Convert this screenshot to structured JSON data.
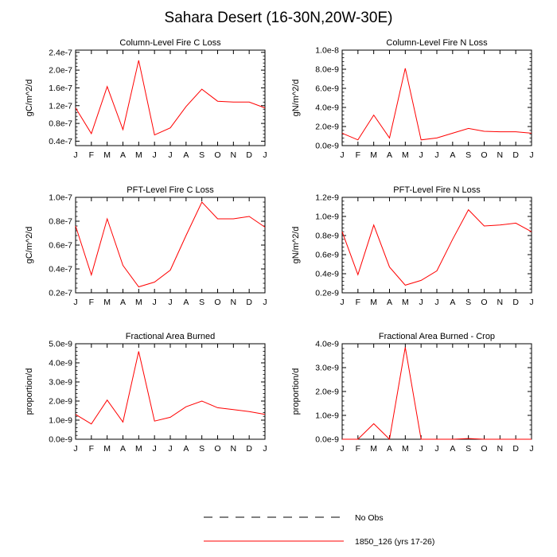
{
  "figure": {
    "title": "Sahara Desert (16-30N,20W-30E)",
    "legend": [
      {
        "label": "No Obs",
        "style": "dashed",
        "color": "#000000"
      },
      {
        "label": "1850_126 (yrs 17-26)",
        "style": "solid",
        "color": "#ff0000"
      }
    ]
  },
  "chart_data": [
    {
      "type": "line",
      "title": "Column-Level Fire C Loss",
      "ylabel": "gC/m^2/d",
      "categories": [
        "J",
        "F",
        "M",
        "A",
        "M",
        "J",
        "J",
        "A",
        "S",
        "O",
        "N",
        "D",
        "J"
      ],
      "ylim": [
        3e-08,
        2.45e-07
      ],
      "yticks": [
        4e-08,
        8e-08,
        1.2e-07,
        1.6e-07,
        2e-07,
        2.4e-07
      ],
      "ytick_labels": [
        "0.4e-7",
        "0.8e-7",
        "1.2e-7",
        "1.6e-7",
        "2.0e-7",
        "2.4e-7"
      ],
      "series": [
        {
          "name": "1850_126 (yrs 17-26)",
          "color": "#ff0000",
          "values": [
            1.15e-07,
            5.7e-08,
            1.63e-07,
            6.6e-08,
            2.22e-07,
            5.4e-08,
            7e-08,
            1.18e-07,
            1.57e-07,
            1.3e-07,
            1.28e-07,
            1.28e-07,
            1.15e-07
          ]
        }
      ]
    },
    {
      "type": "line",
      "title": "Column-Level Fire N Loss",
      "ylabel": "gN/m^2/d",
      "categories": [
        "J",
        "F",
        "M",
        "A",
        "M",
        "J",
        "J",
        "A",
        "S",
        "O",
        "N",
        "D",
        "J"
      ],
      "ylim": [
        0,
        1e-08
      ],
      "yticks": [
        0,
        2e-09,
        4e-09,
        6e-09,
        8e-09,
        1e-08
      ],
      "ytick_labels": [
        "0.0e-9",
        "2.0e-9",
        "4.0e-9",
        "6.0e-9",
        "8.0e-9",
        "1.0e-8"
      ],
      "series": [
        {
          "name": "1850_126 (yrs 17-26)",
          "color": "#ff0000",
          "values": [
            1.3e-09,
            6e-10,
            3.2e-09,
            8e-10,
            8.1e-09,
            6e-10,
            8e-10,
            1.3e-09,
            1.8e-09,
            1.5e-09,
            1.45e-09,
            1.45e-09,
            1.3e-09
          ]
        }
      ]
    },
    {
      "type": "line",
      "title": "PFT-Level Fire C Loss",
      "ylabel": "gC/m^2/d",
      "categories": [
        "J",
        "F",
        "M",
        "A",
        "M",
        "J",
        "J",
        "A",
        "S",
        "O",
        "N",
        "D",
        "J"
      ],
      "ylim": [
        2e-08,
        1e-07
      ],
      "yticks": [
        2e-08,
        4e-08,
        6e-08,
        8e-08,
        1e-07
      ],
      "ytick_labels": [
        "0.2e-7",
        "0.4e-7",
        "0.6e-7",
        "0.8e-7",
        "1.0e-7"
      ],
      "series": [
        {
          "name": "1850_126 (yrs 17-26)",
          "color": "#ff0000",
          "values": [
            7.6e-08,
            3.5e-08,
            8.2e-08,
            4.3e-08,
            2.5e-08,
            2.9e-08,
            3.9e-08,
            6.8e-08,
            9.6e-08,
            8.2e-08,
            8.2e-08,
            8.4e-08,
            7.5e-08
          ]
        }
      ]
    },
    {
      "type": "line",
      "title": "PFT-Level Fire N Loss",
      "ylabel": "gN/m^2/d",
      "categories": [
        "J",
        "F",
        "M",
        "A",
        "M",
        "J",
        "J",
        "A",
        "S",
        "O",
        "N",
        "D",
        "J"
      ],
      "ylim": [
        2e-10,
        1.2e-09
      ],
      "yticks": [
        2e-10,
        4e-10,
        6e-10,
        8e-10,
        1e-09,
        1.2e-09
      ],
      "ytick_labels": [
        "0.2e-9",
        "0.4e-9",
        "0.6e-9",
        "0.8e-9",
        "1.0e-9",
        "1.2e-9"
      ],
      "series": [
        {
          "name": "1850_126 (yrs 17-26)",
          "color": "#ff0000",
          "values": [
            8.4e-10,
            3.9e-10,
            9.1e-10,
            4.7e-10,
            2.8e-10,
            3.3e-10,
            4.3e-10,
            7.6e-10,
            1.07e-09,
            9e-10,
            9.1e-10,
            9.3e-10,
            8.4e-10
          ]
        }
      ]
    },
    {
      "type": "line",
      "title": "Fractional Area Burned",
      "ylabel": "proportion/d",
      "categories": [
        "J",
        "F",
        "M",
        "A",
        "M",
        "J",
        "J",
        "A",
        "S",
        "O",
        "N",
        "D",
        "J"
      ],
      "ylim": [
        0,
        5e-09
      ],
      "yticks": [
        0,
        1e-09,
        2e-09,
        3e-09,
        4e-09,
        5e-09
      ],
      "ytick_labels": [
        "0.0e-9",
        "1.0e-9",
        "2.0e-9",
        "3.0e-9",
        "4.0e-9",
        "5.0e-9"
      ],
      "series": [
        {
          "name": "1850_126 (yrs 17-26)",
          "color": "#ff0000",
          "values": [
            1.3e-09,
            8e-10,
            2.05e-09,
            9e-10,
            4.6e-09,
            9.5e-10,
            1.15e-09,
            1.7e-09,
            2e-09,
            1.65e-09,
            1.55e-09,
            1.45e-09,
            1.3e-09
          ]
        }
      ]
    },
    {
      "type": "line",
      "title": "Fractional Area Burned - Crop",
      "ylabel": "proportion/d",
      "categories": [
        "J",
        "F",
        "M",
        "A",
        "M",
        "J",
        "J",
        "A",
        "S",
        "O",
        "N",
        "D",
        "J"
      ],
      "ylim": [
        0,
        4e-09
      ],
      "yticks": [
        0,
        1e-09,
        2e-09,
        3e-09,
        4e-09
      ],
      "ytick_labels": [
        "0.0e-9",
        "1.0e-9",
        "2.0e-9",
        "3.0e-9",
        "4.0e-9"
      ],
      "series": [
        {
          "name": "1850_126 (yrs 17-26)",
          "color": "#ff0000",
          "values": [
            0,
            0,
            6.5e-10,
            0,
            3.85e-09,
            0,
            0,
            0,
            3e-11,
            0,
            0,
            0,
            0
          ]
        }
      ]
    }
  ]
}
